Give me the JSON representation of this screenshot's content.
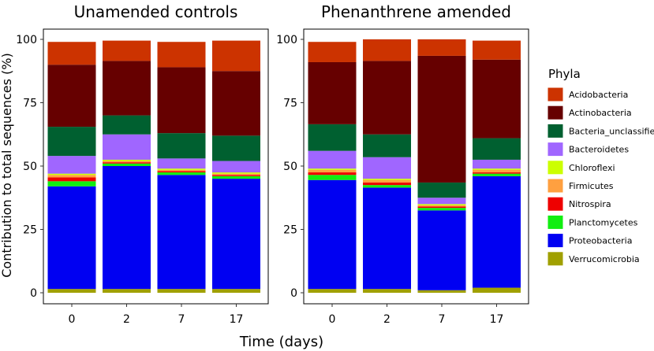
{
  "chart_data": {
    "type": "bar",
    "stacked": true,
    "ylabel": "Contribution to total sequences (%)",
    "xlabel": "Time (days)",
    "ylim": [
      0,
      100
    ],
    "yticks": [
      "0",
      "25",
      "50",
      "75",
      "100"
    ],
    "categories": [
      "0",
      "2",
      "7",
      "17"
    ],
    "legend_title": "Phyla",
    "legend_position": "right",
    "phyla": [
      {
        "name": "Verrucomicrobia",
        "color": "#a0a000"
      },
      {
        "name": "Proteobacteria",
        "color": "#0000f2"
      },
      {
        "name": "Planctomycetes",
        "color": "#11ee11"
      },
      {
        "name": "Nitrospira",
        "color": "#ee0000"
      },
      {
        "name": "Firmicutes",
        "color": "#ffa040"
      },
      {
        "name": "Chloroflexi",
        "color": "#ccff00"
      },
      {
        "name": "Bacteroidetes",
        "color": "#a066ff"
      },
      {
        "name": "Bacteria_unclassified",
        "color": "#006030"
      },
      {
        "name": "Actinobacteria",
        "color": "#660000"
      },
      {
        "name": "Acidobacteria",
        "color": "#cc3300"
      }
    ],
    "panels": [
      {
        "title": "Unamended controls",
        "series": [
          {
            "name": "Verrucomicrobia",
            "values": [
              1.5,
              1.5,
              1.5,
              1.5
            ]
          },
          {
            "name": "Proteobacteria",
            "values": [
              40.5,
              48.5,
              45.0,
              43.5
            ]
          },
          {
            "name": "Planctomycetes",
            "values": [
              2.0,
              1.0,
              1.0,
              1.0
            ]
          },
          {
            "name": "Nitrospira",
            "values": [
              1.5,
              0.5,
              0.5,
              0.5
            ]
          },
          {
            "name": "Firmicutes",
            "values": [
              1.0,
              0.5,
              0.5,
              0.5
            ]
          },
          {
            "name": "Chloroflexi",
            "values": [
              0.5,
              0.5,
              0.5,
              0.5
            ]
          },
          {
            "name": "Bacteroidetes",
            "values": [
              7.0,
              10.0,
              4.0,
              4.5
            ]
          },
          {
            "name": "Bacteria_unclassified",
            "values": [
              11.5,
              7.5,
              10.0,
              10.0
            ]
          },
          {
            "name": "Actinobacteria",
            "values": [
              24.5,
              21.5,
              26.0,
              25.5
            ]
          },
          {
            "name": "Acidobacteria",
            "values": [
              9.0,
              8.0,
              10.0,
              12.0
            ]
          }
        ]
      },
      {
        "title": "Phenanthrene amended",
        "series": [
          {
            "name": "Verrucomicrobia",
            "values": [
              1.5,
              1.5,
              1.0,
              2.0
            ]
          },
          {
            "name": "Proteobacteria",
            "values": [
              43.0,
              40.0,
              31.5,
              44.0
            ]
          },
          {
            "name": "Planctomycetes",
            "values": [
              2.0,
              1.0,
              1.0,
              1.0
            ]
          },
          {
            "name": "Nitrospira",
            "values": [
              1.0,
              1.0,
              0.5,
              0.5
            ]
          },
          {
            "name": "Firmicutes",
            "values": [
              1.0,
              1.0,
              0.5,
              1.0
            ]
          },
          {
            "name": "Chloroflexi",
            "values": [
              0.5,
              0.5,
              0.5,
              0.5
            ]
          },
          {
            "name": "Bacteroidetes",
            "values": [
              7.0,
              8.5,
              2.5,
              3.5
            ]
          },
          {
            "name": "Bacteria_unclassified",
            "values": [
              10.5,
              9.0,
              6.0,
              8.5
            ]
          },
          {
            "name": "Actinobacteria",
            "values": [
              24.5,
              29.0,
              50.0,
              31.0
            ]
          },
          {
            "name": "Acidobacteria",
            "values": [
              8.0,
              8.5,
              6.5,
              7.5
            ]
          }
        ]
      }
    ]
  }
}
